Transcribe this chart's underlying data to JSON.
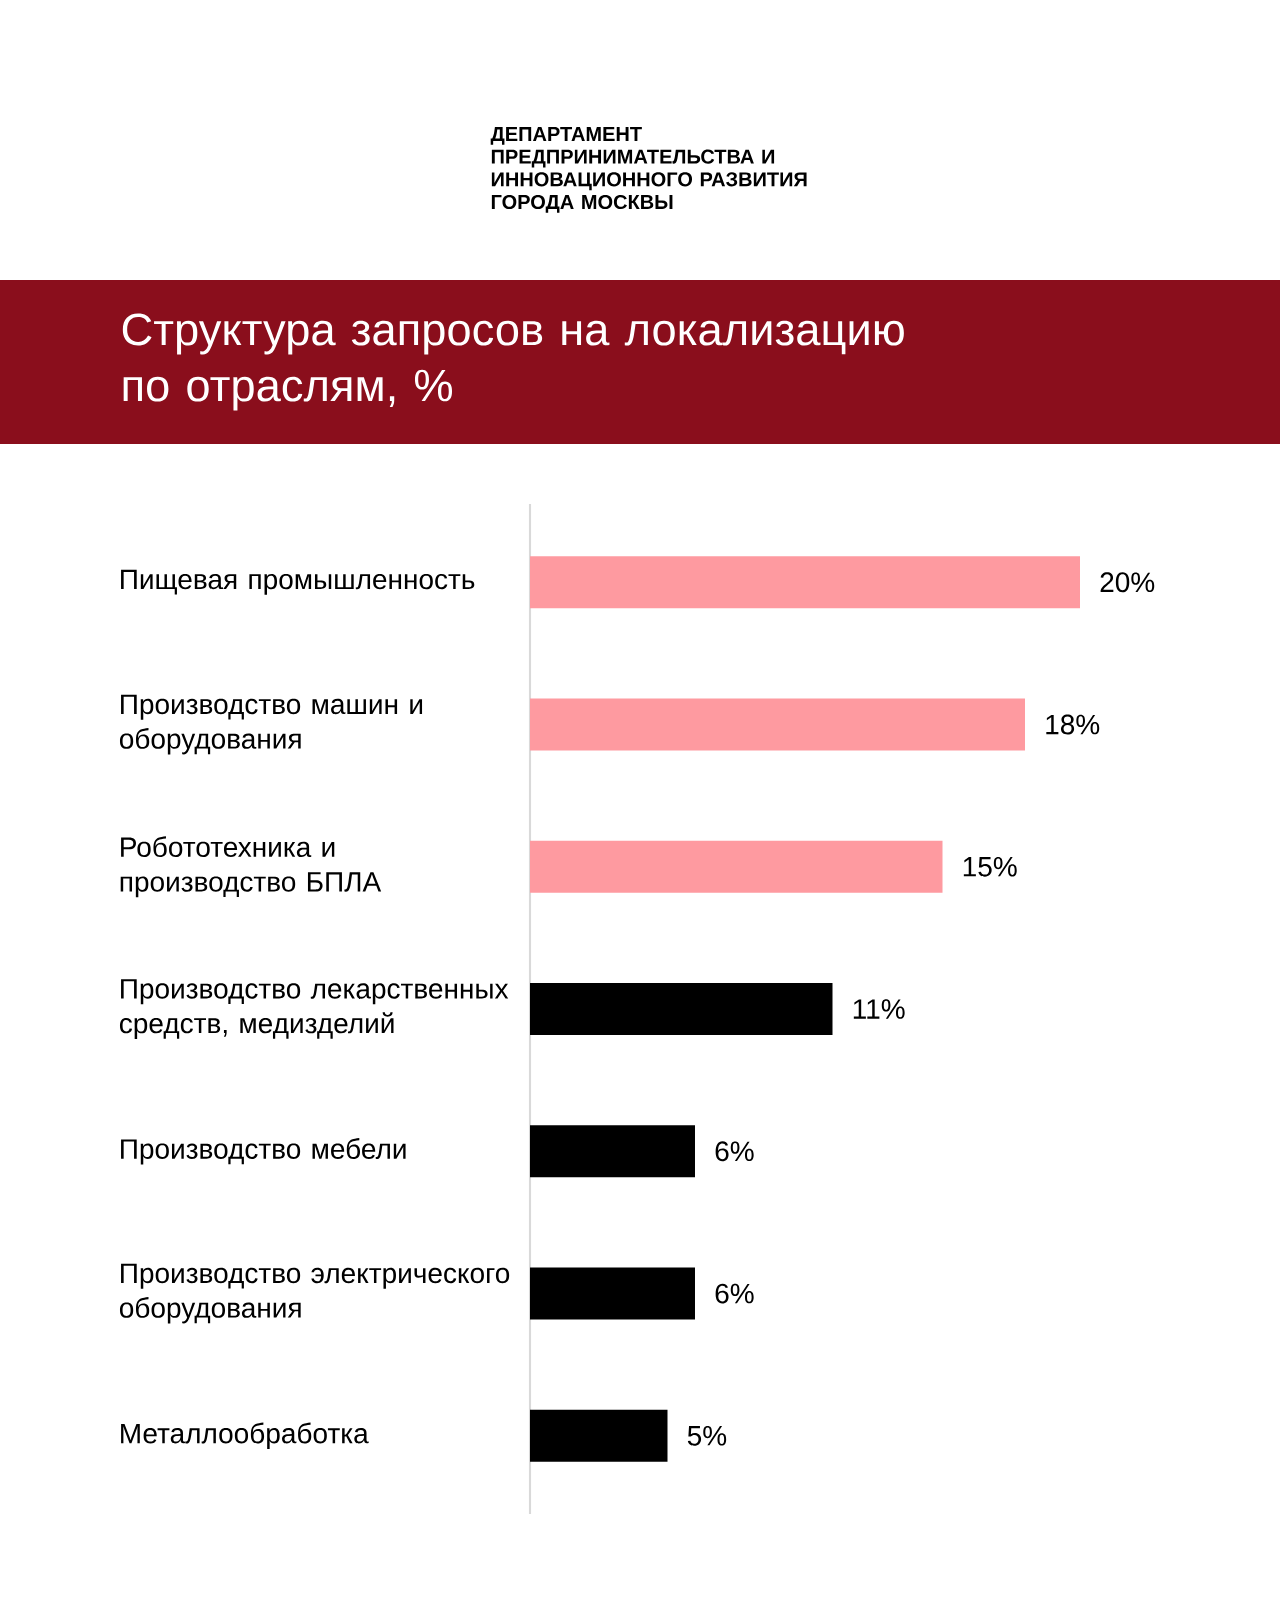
{
  "chart_data": {
    "type": "bar",
    "orientation": "horizontal",
    "title": "Структура запросов на локализацию по отраслям, %",
    "categories": [
      "Пищевая промышленность",
      "Производство машин и оборудования",
      "Робототехника и производство БПЛА",
      "Производство лекарственных средств, медизделий",
      "Производство мебели",
      "Производство электрического оборудования",
      "Металлообработка"
    ],
    "values": [
      20,
      18,
      15,
      11,
      6,
      6,
      5
    ],
    "colors": [
      "#fe9aa0",
      "#fe9aa0",
      "#fe9aa0",
      "#000000",
      "#000000",
      "#000000",
      "#000000"
    ],
    "value_labels": [
      "20%",
      "18%",
      "15%",
      "11%",
      "6%",
      "6%",
      "5%"
    ],
    "tick_labels": "y",
    "annotations": [
      "ДЕПАРТАМЕНТ ПРЕДПРИНИМАТЕЛЬСТВА И ИННОВАЦИОННОГО РАЗВИТИЯ ГОРОДА МОСКВЫ"
    ]
  }
}
